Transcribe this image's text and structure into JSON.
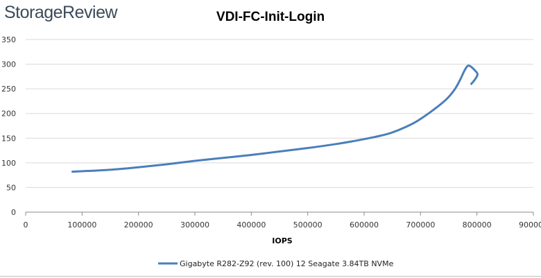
{
  "brand": {
    "logo_text": "StorageReview"
  },
  "chart_data": {
    "type": "line",
    "title": "VDI-FC-Init-Login",
    "xlabel": "IOPS",
    "ylabel": "",
    "xlim": [
      0,
      900000
    ],
    "ylim": [
      0,
      350
    ],
    "xticks": [
      0,
      100000,
      200000,
      300000,
      400000,
      500000,
      600000,
      700000,
      800000,
      900000
    ],
    "xtick_labels": [
      "0",
      "100000",
      "200000",
      "300000",
      "400000",
      "500000",
      "600000",
      "700000",
      "800000",
      "900000"
    ],
    "yticks": [
      0,
      50,
      100,
      150,
      200,
      250,
      300,
      350
    ],
    "ytick_labels": [
      "0",
      "50",
      "100",
      "150",
      "200",
      "250",
      "300",
      "350"
    ],
    "grid": {
      "horizontal": true,
      "vertical": false
    },
    "legend_position": "bottom",
    "series": [
      {
        "name": "Gigabyte R282-Z92 (rev. 100) 12 Seagate 3.84TB NVMe",
        "color": "#4a7ebb",
        "x": [
          83000,
          150000,
          200000,
          250000,
          300000,
          350000,
          400000,
          450000,
          500000,
          550000,
          600000,
          640000,
          660000,
          690000,
          720000,
          745000,
          760000,
          770000,
          777000,
          783000,
          788000,
          795000,
          801000,
          797000,
          790000
        ],
        "y": [
          82,
          86,
          91,
          97,
          104,
          110,
          116,
          123,
          130,
          138,
          148,
          158,
          166,
          182,
          205,
          228,
          248,
          268,
          285,
          296,
          296,
          289,
          280,
          270,
          260
        ]
      }
    ]
  }
}
